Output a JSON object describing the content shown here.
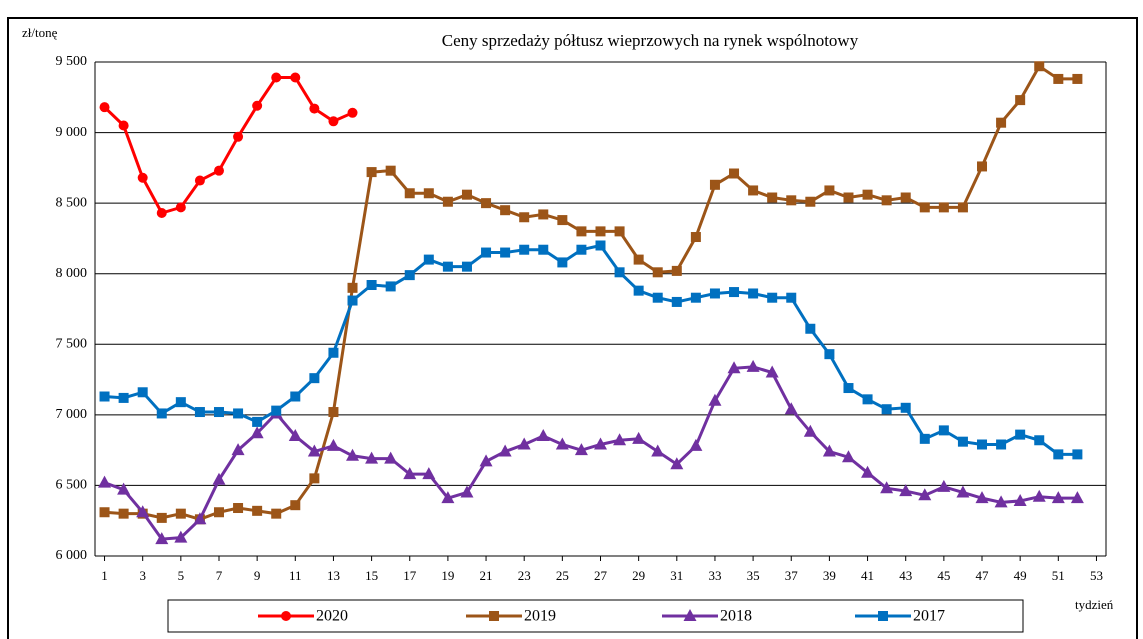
{
  "chart_data": {
    "type": "line",
    "title": "Ceny sprzedaży półtusz wieprzowych na rynek wspólnotowy",
    "y_label": "zł/tonę",
    "x_label": "tydzień",
    "x": [
      1,
      2,
      3,
      4,
      5,
      6,
      7,
      8,
      9,
      10,
      11,
      12,
      13,
      14,
      15,
      16,
      17,
      18,
      19,
      20,
      21,
      22,
      23,
      24,
      25,
      26,
      27,
      28,
      29,
      30,
      31,
      32,
      33,
      34,
      35,
      36,
      37,
      38,
      39,
      40,
      41,
      42,
      43,
      44,
      45,
      46,
      47,
      48,
      49,
      50,
      51,
      52
    ],
    "xlim": [
      0.5,
      53.5
    ],
    "xticks": [
      1,
      3,
      5,
      7,
      9,
      11,
      13,
      15,
      17,
      19,
      21,
      23,
      25,
      27,
      29,
      31,
      33,
      35,
      37,
      39,
      41,
      43,
      45,
      47,
      49,
      51,
      53
    ],
    "ylim": [
      6000,
      9500
    ],
    "yticks": [
      {
        "value": 6000,
        "label": "6 000"
      },
      {
        "value": 6500,
        "label": "6 500"
      },
      {
        "value": 7000,
        "label": "7 000"
      },
      {
        "value": 7500,
        "label": "7 500"
      },
      {
        "value": 8000,
        "label": "8 000"
      },
      {
        "value": 8500,
        "label": "8 500"
      },
      {
        "value": 9000,
        "label": "9 000"
      },
      {
        "value": 9500,
        "label": "9 500"
      }
    ],
    "grid": true,
    "legend": "bottom",
    "series": [
      {
        "name": "2020",
        "color": "#ff0000",
        "marker": "circle",
        "values": [
          9180,
          9050,
          8680,
          8430,
          8470,
          8660,
          8730,
          8970,
          9190,
          9390,
          9390,
          9170,
          9080,
          9140,
          null,
          null,
          null,
          null,
          null,
          null,
          null,
          null,
          null,
          null,
          null,
          null,
          null,
          null,
          null,
          null,
          null,
          null,
          null,
          null,
          null,
          null,
          null,
          null,
          null,
          null,
          null,
          null,
          null,
          null,
          null,
          null,
          null,
          null,
          null,
          null,
          null,
          null
        ]
      },
      {
        "name": "2019",
        "color": "#9c5518",
        "marker": "square",
        "values": [
          6310,
          6300,
          6300,
          6270,
          6300,
          6260,
          6310,
          6340,
          6320,
          6300,
          6360,
          6550,
          7020,
          7900,
          8720,
          8730,
          8570,
          8570,
          8510,
          8560,
          8500,
          8450,
          8400,
          8420,
          8380,
          8300,
          8300,
          8300,
          8100,
          8010,
          8020,
          8260,
          8630,
          8710,
          8590,
          8540,
          8520,
          8510,
          8590,
          8540,
          8560,
          8520,
          8540,
          8470,
          8470,
          8470,
          8760,
          9070,
          9230,
          9470,
          9380,
          9380
        ]
      },
      {
        "name": "2018",
        "color": "#7030a0",
        "marker": "triangle",
        "values": [
          6520,
          6470,
          6310,
          6120,
          6130,
          6260,
          6540,
          6750,
          6870,
          7010,
          6850,
          6740,
          6780,
          6710,
          6690,
          6690,
          6580,
          6580,
          6410,
          6450,
          6670,
          6740,
          6790,
          6850,
          6790,
          6750,
          6790,
          6820,
          6830,
          6740,
          6650,
          6780,
          7100,
          7330,
          7340,
          7300,
          7040,
          6880,
          6740,
          6700,
          6590,
          6480,
          6460,
          6430,
          6490,
          6450,
          6410,
          6380,
          6390,
          6420,
          6410,
          6410
        ]
      },
      {
        "name": "2017",
        "color": "#0070c0",
        "marker": "square",
        "values": [
          7130,
          7120,
          7160,
          7010,
          7090,
          7020,
          7020,
          7010,
          6950,
          7030,
          7130,
          7260,
          7440,
          7810,
          7920,
          7910,
          7990,
          8100,
          8050,
          8050,
          8150,
          8150,
          8170,
          8170,
          8080,
          8170,
          8200,
          8010,
          7880,
          7830,
          7800,
          7830,
          7860,
          7870,
          7860,
          7830,
          7830,
          7610,
          7430,
          7190,
          7110,
          7040,
          7050,
          6830,
          6890,
          6810,
          6790,
          6790,
          6860,
          6820,
          6720,
          6720
        ]
      }
    ]
  }
}
